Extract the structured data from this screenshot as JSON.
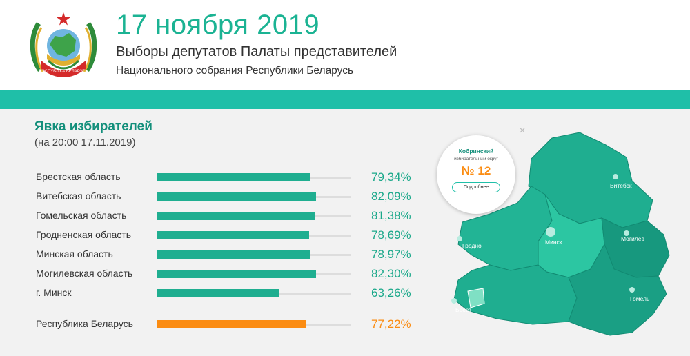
{
  "header": {
    "date": "17 ноября 2019",
    "title": "Выборы депутатов Палаты представителей",
    "subtitle": "Национального собрания Республики Беларусь",
    "emblem_ribbon": "РЭСПУБЛІКА БЕЛАРУСЬ"
  },
  "turnout": {
    "title": "Явка избирателей",
    "as_of": "(на 20:00 17.11.2019)",
    "rows": [
      {
        "label": "Брестская область",
        "value": "79,34%",
        "fraction": 0.7934
      },
      {
        "label": "Витебская область",
        "value": "82,09%",
        "fraction": 0.8209
      },
      {
        "label": "Гомельская область",
        "value": "81,38%",
        "fraction": 0.8138
      },
      {
        "label": "Гродненская область",
        "value": "78,69%",
        "fraction": 0.7869
      },
      {
        "label": "Минская область",
        "value": "78,97%",
        "fraction": 0.7897
      },
      {
        "label": "Могилевская область",
        "value": "82,30%",
        "fraction": 0.823
      },
      {
        "label": "г. Минск",
        "value": "63,26%",
        "fraction": 0.6326
      }
    ],
    "total": {
      "label": "Республика Беларусь",
      "value": "77,22%",
      "fraction": 0.7722
    }
  },
  "map": {
    "popup": {
      "district": "Кобринский",
      "district_type": "избирательный округ",
      "number": "№ 12",
      "button": "Подробнее",
      "close": "×"
    },
    "cities": [
      "Витебск",
      "Минск",
      "Могилев",
      "Гродно",
      "Брест",
      "Гомель"
    ]
  },
  "colors": {
    "accent": "#1fbfa8",
    "bar": "#1fae90",
    "total_bar": "#fb8c12",
    "map_fill": "#1fae90",
    "map_dark": "#128a72",
    "selected_district": "#7fe0c4"
  }
}
